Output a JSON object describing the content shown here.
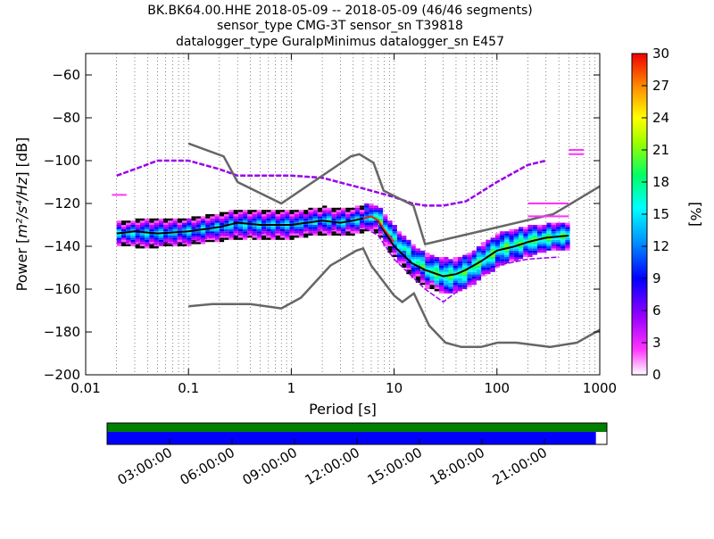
{
  "chart_data": {
    "type": "heatmap",
    "title_lines": [
      "BK.BK64.00.HHE   2018-05-09 -- 2018-05-09  (46/46 segments)",
      "sensor_type CMG-3T sensor_sn T39818",
      "datalogger_type GuralpMinimus datalogger_sn E457"
    ],
    "xlabel": "Period [s]",
    "ylabel_prefix": "Power [",
    "ylabel_math": "m²/s⁴/Hz",
    "ylabel_suffix": "] [dB]",
    "x_scale": "log",
    "xlim": [
      0.01,
      1000
    ],
    "ylim": [
      -200,
      -50
    ],
    "x_ticks": [
      {
        "value": 0.01,
        "label": "0.01"
      },
      {
        "value": 0.1,
        "label": "0.1"
      },
      {
        "value": 1,
        "label": "1"
      },
      {
        "value": 10,
        "label": "10"
      },
      {
        "value": 100,
        "label": "100"
      },
      {
        "value": 1000,
        "label": "1000"
      }
    ],
    "y_ticks": [
      {
        "value": -60,
        "label": "−60"
      },
      {
        "value": -80,
        "label": "−80"
      },
      {
        "value": -100,
        "label": "−100"
      },
      {
        "value": -120,
        "label": "−120"
      },
      {
        "value": -140,
        "label": "−140"
      },
      {
        "value": -160,
        "label": "−160"
      },
      {
        "value": -180,
        "label": "−180"
      },
      {
        "value": -200,
        "label": "−200"
      }
    ],
    "grid": "dotted-vertical",
    "colorbar": {
      "label": "[%]",
      "range": [
        0,
        30
      ],
      "ticks": [
        "0",
        "3",
        "6",
        "9",
        "12",
        "15",
        "18",
        "21",
        "24",
        "27",
        "30"
      ]
    },
    "series": [
      {
        "role": "mean",
        "color": "#000000",
        "points": [
          [
            0.02,
            -134
          ],
          [
            0.03,
            -133
          ],
          [
            0.05,
            -134
          ],
          [
            0.1,
            -133
          ],
          [
            0.2,
            -131
          ],
          [
            0.3,
            -129
          ],
          [
            0.5,
            -130
          ],
          [
            1,
            -130
          ],
          [
            2,
            -128
          ],
          [
            3,
            -129
          ],
          [
            4,
            -128
          ],
          [
            5,
            -127
          ],
          [
            6,
            -126
          ],
          [
            7,
            -128
          ],
          [
            8,
            -133
          ],
          [
            10,
            -140
          ],
          [
            15,
            -148
          ],
          [
            20,
            -151
          ],
          [
            30,
            -154
          ],
          [
            40,
            -153
          ],
          [
            50,
            -151
          ],
          [
            70,
            -147
          ],
          [
            100,
            -142
          ],
          [
            150,
            -140
          ],
          [
            200,
            -138
          ],
          [
            300,
            -136
          ],
          [
            500,
            -135
          ]
        ]
      },
      {
        "role": "mode-red",
        "color": "#ff2020",
        "points": [
          [
            5,
            -127
          ],
          [
            6,
            -126
          ],
          [
            7,
            -128
          ],
          [
            8,
            -132
          ],
          [
            10,
            -138
          ]
        ]
      },
      {
        "role": "noise-model-high",
        "color": "#666666",
        "points": [
          [
            0.1,
            -92
          ],
          [
            0.22,
            -98
          ],
          [
            0.3,
            -110
          ],
          [
            0.8,
            -120
          ],
          [
            3.8,
            -98
          ],
          [
            4.6,
            -97
          ],
          [
            6.3,
            -101
          ],
          [
            7.9,
            -114
          ],
          [
            15.4,
            -121
          ],
          [
            20,
            -139
          ],
          [
            354,
            -125
          ],
          [
            1000,
            -112
          ]
        ]
      },
      {
        "role": "noise-model-low",
        "color": "#666666",
        "points": [
          [
            0.1,
            -168
          ],
          [
            0.17,
            -167
          ],
          [
            0.4,
            -167
          ],
          [
            0.8,
            -169
          ],
          [
            1.24,
            -164
          ],
          [
            2.4,
            -149
          ],
          [
            4.3,
            -142
          ],
          [
            5,
            -141
          ],
          [
            6,
            -149
          ],
          [
            10,
            -163
          ],
          [
            12,
            -166
          ],
          [
            15.6,
            -162
          ],
          [
            21.9,
            -177
          ],
          [
            31.6,
            -185
          ],
          [
            45,
            -187
          ],
          [
            70,
            -187
          ],
          [
            101,
            -185
          ],
          [
            154,
            -185
          ],
          [
            328,
            -187
          ],
          [
            600,
            -185
          ],
          [
            1000,
            -179
          ]
        ]
      },
      {
        "role": "envelope-max",
        "color": "#9900ee",
        "points": [
          [
            0.02,
            -107
          ],
          [
            0.03,
            -104
          ],
          [
            0.05,
            -100
          ],
          [
            0.1,
            -100
          ],
          [
            0.2,
            -104
          ],
          [
            0.3,
            -107
          ],
          [
            1,
            -107
          ],
          [
            2,
            -108
          ],
          [
            5,
            -113
          ],
          [
            10,
            -117
          ],
          [
            15,
            -120
          ],
          [
            20,
            -121
          ],
          [
            30,
            -121
          ],
          [
            50,
            -119
          ],
          [
            100,
            -110
          ],
          [
            200,
            -102
          ],
          [
            300,
            -100
          ]
        ]
      },
      {
        "role": "envelope-min",
        "color": "#9900ee",
        "points": [
          [
            0.02,
            -138
          ],
          [
            0.05,
            -139
          ],
          [
            0.1,
            -138
          ],
          [
            0.2,
            -135
          ],
          [
            0.5,
            -134
          ],
          [
            1,
            -133
          ],
          [
            3,
            -132
          ],
          [
            5,
            -131
          ],
          [
            7,
            -135
          ],
          [
            10,
            -146
          ],
          [
            20,
            -160
          ],
          [
            30,
            -166
          ],
          [
            50,
            -158
          ],
          [
            100,
            -149
          ],
          [
            200,
            -146
          ],
          [
            400,
            -145
          ]
        ]
      }
    ],
    "density_band": [
      [
        0.02,
        -136,
        -133
      ],
      [
        0.03,
        -137,
        -132
      ],
      [
        0.05,
        -137,
        -132
      ],
      [
        0.1,
        -136,
        -131
      ],
      [
        0.2,
        -134,
        -129
      ],
      [
        0.3,
        -133,
        -127
      ],
      [
        0.5,
        -133,
        -128
      ],
      [
        1,
        -133,
        -128
      ],
      [
        2,
        -131,
        -126
      ],
      [
        3,
        -132,
        -127
      ],
      [
        4,
        -131,
        -126
      ],
      [
        5,
        -130,
        -125
      ],
      [
        6,
        -129,
        -125
      ],
      [
        7,
        -132,
        -126
      ],
      [
        8,
        -137,
        -130
      ],
      [
        10,
        -143,
        -136
      ],
      [
        15,
        -152,
        -144
      ],
      [
        20,
        -156,
        -148
      ],
      [
        30,
        -159,
        -150
      ],
      [
        40,
        -158,
        -150
      ],
      [
        50,
        -156,
        -148
      ],
      [
        70,
        -151,
        -143
      ],
      [
        100,
        -146,
        -138
      ],
      [
        150,
        -143,
        -136
      ],
      [
        200,
        -141,
        -135
      ],
      [
        300,
        -139,
        -134
      ],
      [
        500,
        -138,
        -133
      ]
    ],
    "extra_magenta_lines": [
      {
        "points": [
          [
            0.018,
            -116
          ],
          [
            0.025,
            -116
          ]
        ]
      },
      {
        "points": [
          [
            500,
            -95
          ],
          [
            700,
            -95
          ]
        ]
      },
      {
        "points": [
          [
            500,
            -97
          ],
          [
            700,
            -97
          ]
        ]
      },
      {
        "points": [
          [
            200,
            -120
          ],
          [
            500,
            -120
          ]
        ]
      },
      {
        "points": [
          [
            200,
            -126
          ],
          [
            500,
            -126
          ]
        ]
      }
    ]
  },
  "timeline": {
    "labels": [
      "03:00:00",
      "06:00:00",
      "09:00:00",
      "12:00:00",
      "15:00:00",
      "18:00:00",
      "21:00:00"
    ],
    "coverage_fraction": 0.978,
    "top_color": "#008000",
    "bottom_color": "#0000ff"
  }
}
